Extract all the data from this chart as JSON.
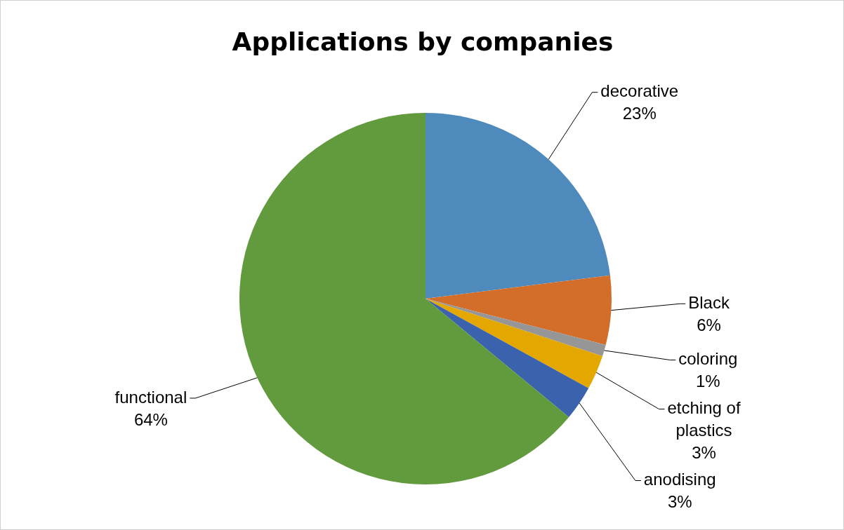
{
  "chart_data": {
    "type": "pie",
    "title": "Applications by companies",
    "categories": [
      "decorative",
      "Black",
      "coloring",
      "etching of plastics",
      "anodising",
      "functional"
    ],
    "values": [
      23,
      6,
      1,
      3,
      3,
      64
    ],
    "colors": [
      "#4f8abd",
      "#d36e2a",
      "#969696",
      "#e3a700",
      "#3a62ad",
      "#629a3e"
    ],
    "value_labels": [
      "23%",
      "6%",
      "1%",
      "3%",
      "3%",
      "64%"
    ],
    "legend": false
  }
}
